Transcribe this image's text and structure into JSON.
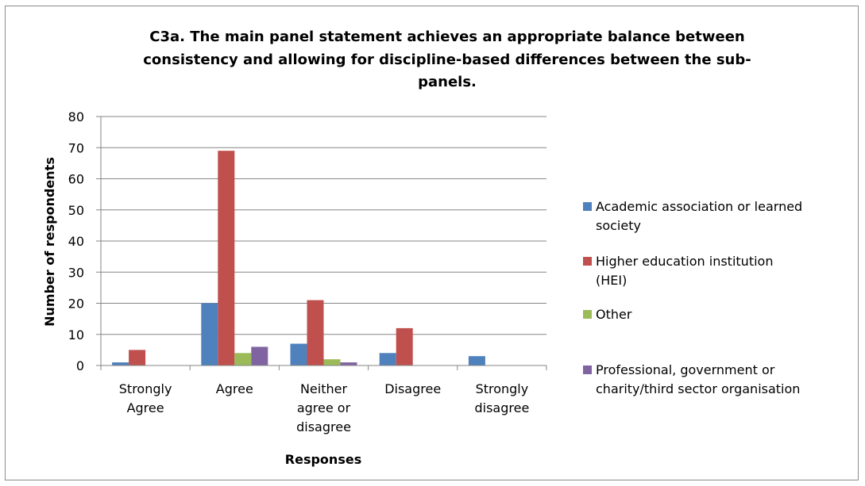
{
  "chart_data": {
    "type": "bar",
    "title_lines": [
      "C3a. The main panel statement achieves an appropriate balance between",
      "consistency and allowing for discipline-based differences between the sub-",
      "panels."
    ],
    "xlabel": "Responses",
    "ylabel": "Number of respondents",
    "ylim": [
      0,
      80
    ],
    "yticks": [
      "0",
      "10",
      "20",
      "30",
      "40",
      "50",
      "60",
      "70",
      "80"
    ],
    "grid": true,
    "legend_position": "right",
    "categories": [
      [
        "Strongly",
        "Agree"
      ],
      [
        "Agree"
      ],
      [
        "Neither",
        "agree or",
        "disagree"
      ],
      [
        "Disagree"
      ],
      [
        "Strongly",
        "disagree"
      ]
    ],
    "series": [
      {
        "name": "Academic association or learned society",
        "legend_lines": [
          "Academic association or learned",
          "society"
        ],
        "color": "#4f81bd",
        "values": [
          1,
          20,
          7,
          4,
          3
        ]
      },
      {
        "name": "Higher education institution (HEI)",
        "legend_lines": [
          "Higher education institution",
          "(HEI)"
        ],
        "color": "#c0504d",
        "values": [
          5,
          69,
          21,
          12,
          0
        ]
      },
      {
        "name": "Other",
        "legend_lines": [
          "Other"
        ],
        "color": "#9bbb59",
        "values": [
          0,
          4,
          2,
          0,
          0
        ]
      },
      {
        "name": "Professional, government or charity/third sector organisation",
        "legend_lines": [
          "Professional, government or",
          "charity/third sector organisation"
        ],
        "color": "#8064a2",
        "values": [
          0,
          6,
          1,
          0,
          0
        ]
      }
    ]
  }
}
